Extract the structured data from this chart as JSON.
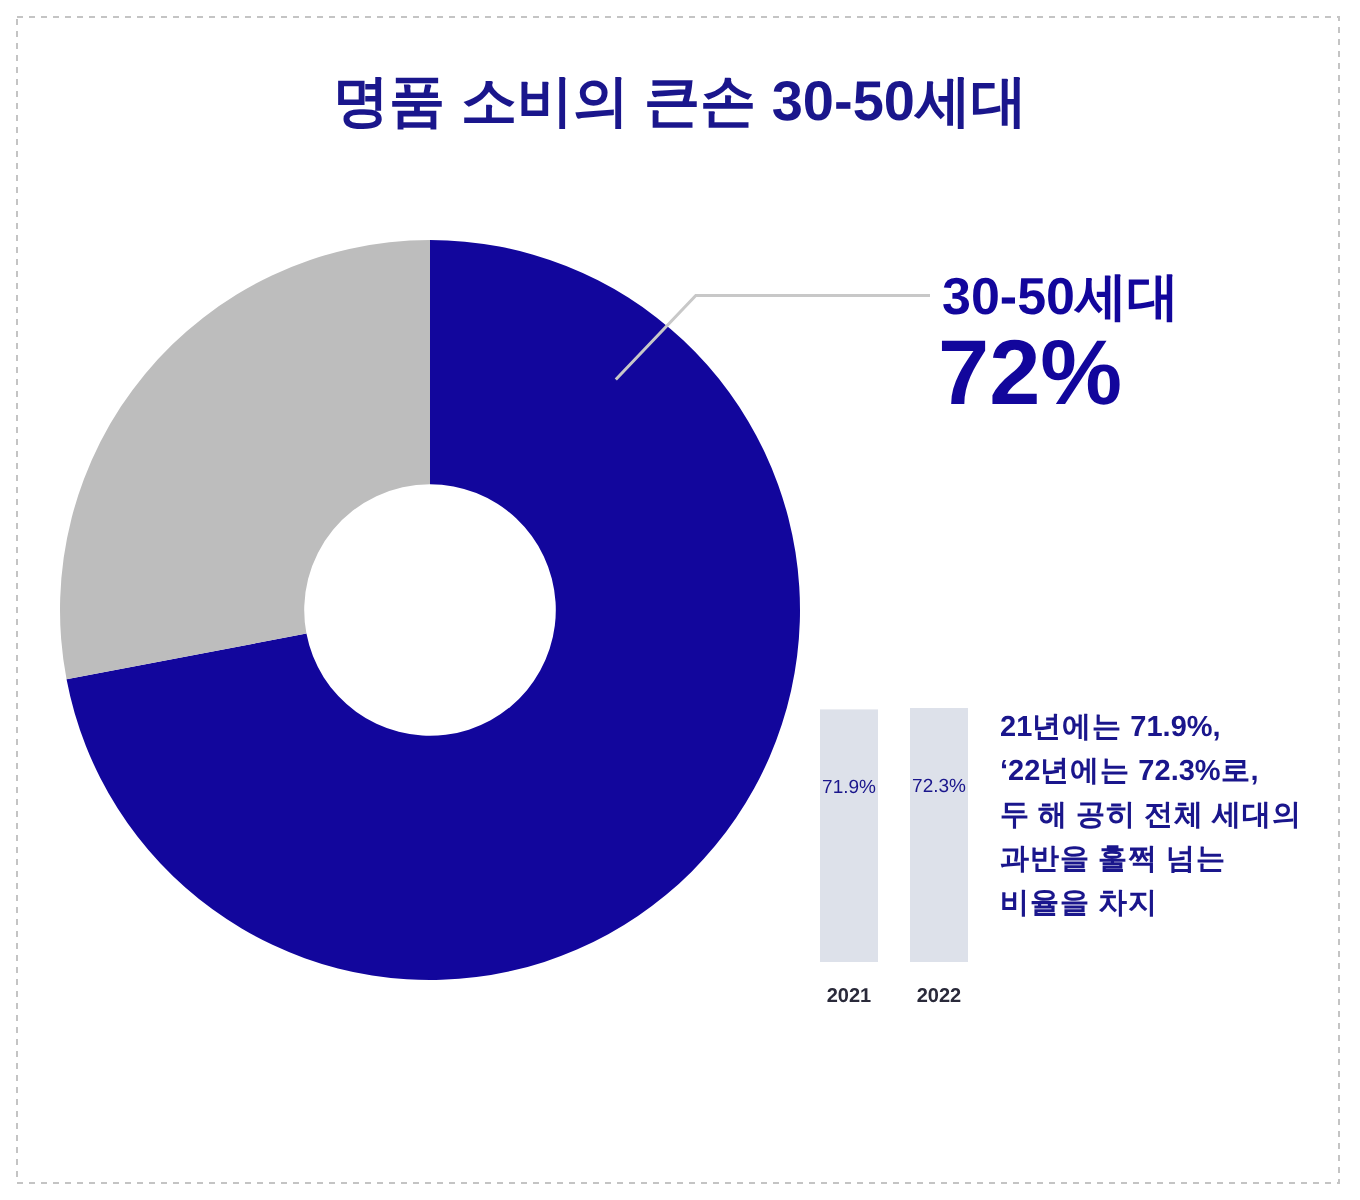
{
  "chart_data": [
    {
      "type": "donut",
      "title": "명품 소비의 큰손 30-50세대",
      "categories": [
        "30-50세대",
        null
      ],
      "values": [
        72,
        28
      ],
      "colors": [
        "#12069c",
        "#bdbdbd"
      ],
      "value_labels": [
        "72%",
        null
      ]
    },
    {
      "type": "bar",
      "categories": [
        "2021",
        "2022"
      ],
      "values": [
        71.9,
        72.3
      ],
      "color": "#dde1ea",
      "value_labels": [
        "71.9%",
        "72.3%"
      ],
      "annotations": [
        "21년에는 71.9%,\n‘22년에는 72.3%로,\n두 해 공히 전체 세대의\n과반을 훌쩍 넘는\n비율을 차지"
      ]
    }
  ]
}
